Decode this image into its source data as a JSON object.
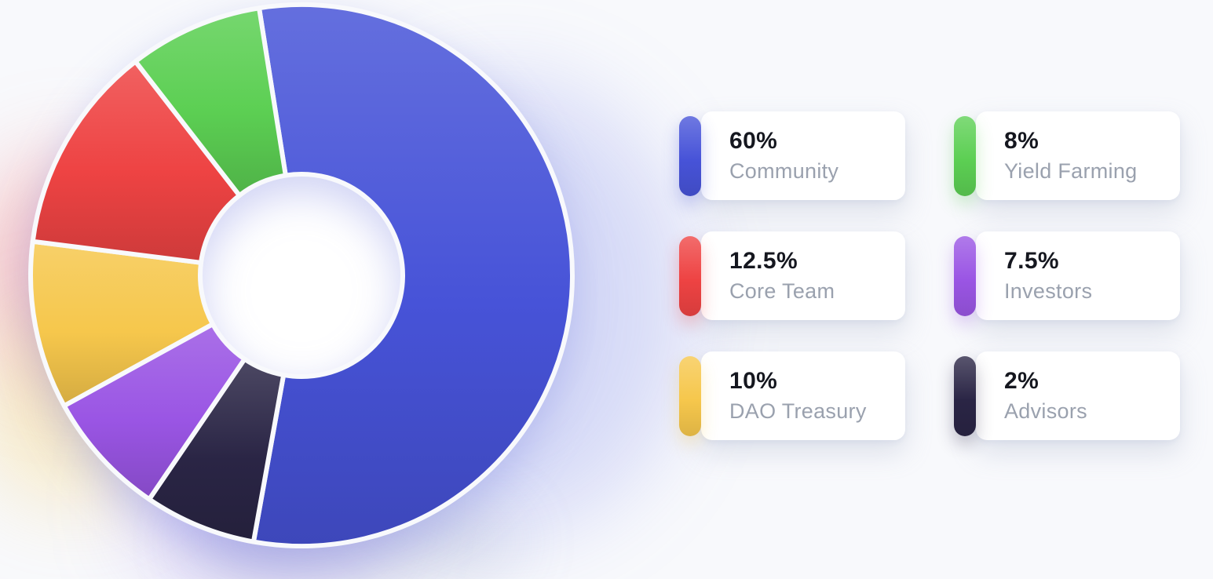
{
  "background": {
    "color": "#f8f9fc"
  },
  "chart_data": {
    "type": "pie",
    "variant": "donut",
    "title": "",
    "total": 100,
    "slices": [
      {
        "label": "Community",
        "value": 60,
        "percent_label": "60%",
        "color": "#4753d8"
      },
      {
        "label": "Yield Farming",
        "value": 8,
        "percent_label": "8%",
        "color": "#5ccf53"
      },
      {
        "label": "Core Team",
        "value": 12.5,
        "percent_label": "12.5%",
        "color": "#ee4343"
      },
      {
        "label": "Investors",
        "value": 7.5,
        "percent_label": "7.5%",
        "color": "#9a55e4"
      },
      {
        "label": "DAO Treasury",
        "value": 10,
        "percent_label": "10%",
        "color": "#f6c74c"
      },
      {
        "label": "Advisors",
        "value": 2,
        "percent_label": "2%",
        "color": "#2a2545"
      }
    ],
    "start_angle_deg": -9,
    "direction": "clockwise",
    "draw_order": [
      0,
      5,
      3,
      4,
      2,
      1
    ],
    "inner_radius_ratio": 0.375,
    "min_slice_display_deg": 24,
    "legend_position": "right",
    "grid": false
  },
  "legend": {
    "columns": 2,
    "items": [
      {
        "percent": "60%",
        "label": "Community",
        "color": "#4753d8"
      },
      {
        "percent": "8%",
        "label": "Yield Farming",
        "color": "#5ccf53"
      },
      {
        "percent": "12.5%",
        "label": "Core Team",
        "color": "#ee4343"
      },
      {
        "percent": "7.5%",
        "label": "Investors",
        "color": "#9a55e4"
      },
      {
        "percent": "10%",
        "label": "DAO Treasury",
        "color": "#f6c74c"
      },
      {
        "percent": "2%",
        "label": "Advisors",
        "color": "#2a2545"
      }
    ]
  }
}
